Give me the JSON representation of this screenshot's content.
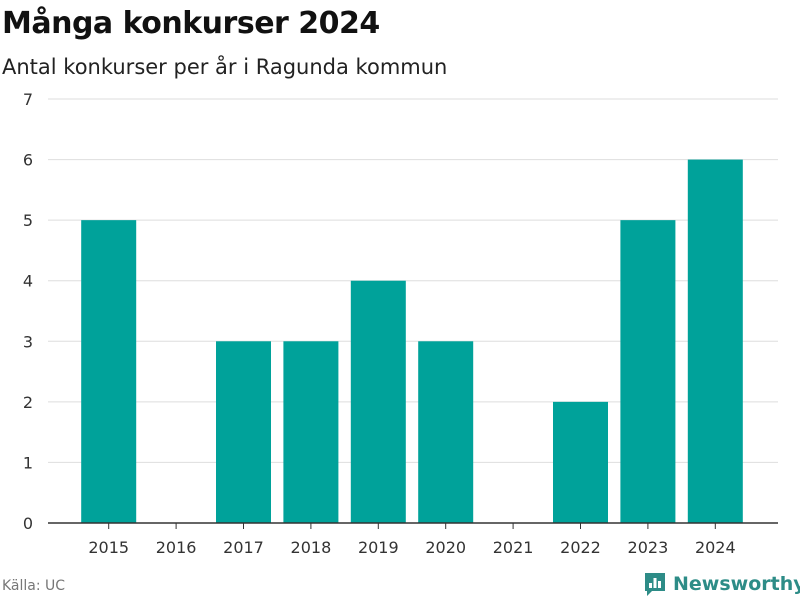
{
  "colors": {
    "bar": "#00a29a",
    "grid": "#dedede",
    "axis": "#333333",
    "brand": "#2d8c87"
  },
  "source_text": "Källa: UC",
  "brand": {
    "name": "Newsworthy",
    "icon": "bar-chart-logo-icon"
  },
  "chart_data": {
    "type": "bar",
    "title": "Många konkurser 2024",
    "subtitle": "Antal konkurser per år i Ragunda kommun",
    "categories": [
      "2015",
      "2016",
      "2017",
      "2018",
      "2019",
      "2020",
      "2021",
      "2022",
      "2023",
      "2024"
    ],
    "values": [
      5,
      0,
      3,
      3,
      4,
      3,
      0,
      2,
      5,
      6
    ],
    "ylim": [
      0,
      7
    ],
    "yticks": [
      0,
      1,
      2,
      3,
      4,
      5,
      6,
      7
    ],
    "grid": true,
    "legend": false
  }
}
